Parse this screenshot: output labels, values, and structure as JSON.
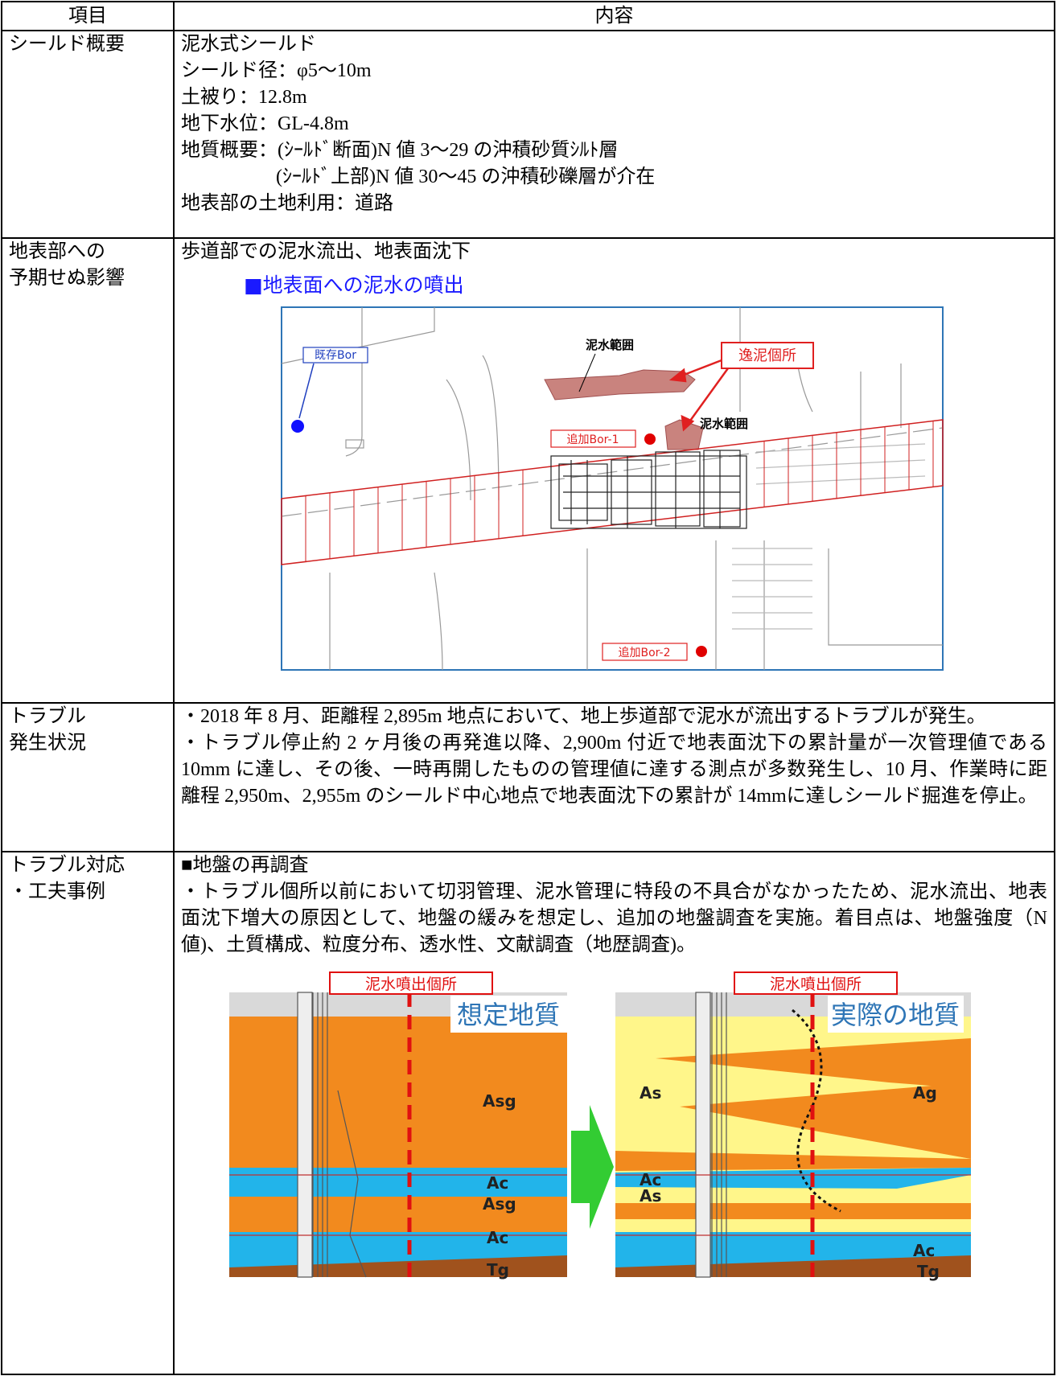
{
  "table": {
    "header": [
      "項目",
      "内容"
    ],
    "rows": [
      {
        "item": [
          "シールド概要"
        ],
        "content": [
          "泥水式シールド",
          "シールド径：φ5～10m",
          "土被り：12.8m",
          "地下水位：GL-4.8m",
          "地質概要：(ｼｰﾙﾄﾞ断面)N 値 3～29 の沖積砂質ｼﾙﾄ層",
          "(ｼｰﾙﾄﾞ上部)N 値 30～45 の沖積砂礫層が介在",
          "地表部の土地利用：道路"
        ]
      },
      {
        "item": [
          "地表部への",
          "予期せぬ影響"
        ],
        "content": [
          "歩道部での泥水流出、地表面沈下"
        ],
        "figure": {
          "caption": "■地表面への泥水の噴出",
          "existing_bor": "既存Bor",
          "mud_range_1": "泥水範囲",
          "mud_range_2": "泥水範囲",
          "loss_point": "逸泥個所",
          "added_bor_1": "追加Bor-1",
          "added_bor_2": "追加Bor-2"
        }
      },
      {
        "item": [
          "トラブル",
          "発生状況"
        ],
        "content": [
          "・2018 年 8 月、距離程 2,895m 地点において、地上歩道部で泥水が流出するトラブルが発生。",
          "・トラブル停止約 2 ヶ月後の再発進以降、2,900m 付近で地表面沈下の累計量が一次管理値である 10mm に達し、その後、一時再開したものの管理値に達する測点が多数発生し、10 月、作業時に距離程 2,950m、2,955m のシールド中心地点で地表面沈下の累計が 14mmに達しシールド掘進を停止。"
        ]
      },
      {
        "item": [
          "トラブル対応",
          "・工夫事例"
        ],
        "content": [
          "■地盤の再調査",
          "・トラブル個所以前において切羽管理、泥水管理に特段の不具合がなかったため、泥水流出、地表面沈下増大の原因として、地盤の緩みを想定し、追加の地盤調査を実施。着目点は、地盤強度（N 値)、土質構成、粒度分布、透水性、文献調査（地歴調査)。"
        ],
        "figure": {
          "left": {
            "marker": "泥水噴出個所",
            "title": "想定地質",
            "layers": [
              "Asg",
              "Ac",
              "Asg",
              "Ac",
              "Tg"
            ]
          },
          "right": {
            "marker": "泥水噴出個所",
            "title": "実際の地質",
            "layers": [
              "As",
              "Ag",
              "Ac",
              "As",
              "Ac",
              "Tg"
            ]
          }
        }
      }
    ]
  }
}
